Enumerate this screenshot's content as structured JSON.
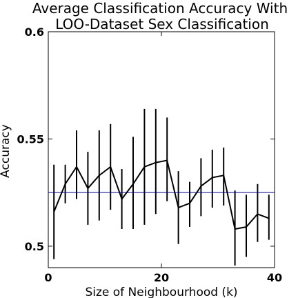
{
  "chart_data": {
    "type": "line",
    "title_lines": [
      "Average Classification Accuracy With",
      "LOO-Dataset Sex Classification"
    ],
    "xlabel": "Size of Neighbourhood (k)",
    "ylabel": "Accuracy",
    "xlim": [
      0,
      40
    ],
    "ylim": [
      0.49,
      0.6
    ],
    "xticks": [
      0,
      20,
      40
    ],
    "xtick_labels": [
      "0",
      "20",
      "40"
    ],
    "yticks": [
      0.5,
      0.55,
      0.6
    ],
    "ytick_labels": [
      "0.5",
      "0.55",
      "0.6"
    ],
    "grid": false,
    "series": [
      {
        "color": "#000000",
        "x": [
          1,
          3,
          5,
          7,
          9,
          11,
          13,
          15,
          17,
          19,
          21,
          23,
          25,
          27,
          29,
          31,
          33,
          35,
          37,
          39
        ],
        "y": [
          0.516,
          0.529,
          0.537,
          0.527,
          0.533,
          0.537,
          0.522,
          0.529,
          0.537,
          0.539,
          0.54,
          0.518,
          0.52,
          0.528,
          0.532,
          0.533,
          0.508,
          0.509,
          0.515,
          0.513
        ],
        "err_low": [
          0.494,
          0.52,
          0.522,
          0.51,
          0.512,
          0.517,
          0.508,
          0.508,
          0.51,
          0.515,
          0.521,
          0.501,
          0.509,
          0.514,
          0.518,
          0.519,
          0.491,
          0.495,
          0.502,
          0.503
        ],
        "err_high": [
          0.538,
          0.538,
          0.554,
          0.544,
          0.554,
          0.557,
          0.536,
          0.551,
          0.564,
          0.564,
          0.56,
          0.535,
          0.53,
          0.541,
          0.545,
          0.546,
          0.526,
          0.524,
          0.529,
          0.524
        ]
      }
    ],
    "reference_line": {
      "y": 0.525,
      "color": "#0000aa"
    }
  }
}
